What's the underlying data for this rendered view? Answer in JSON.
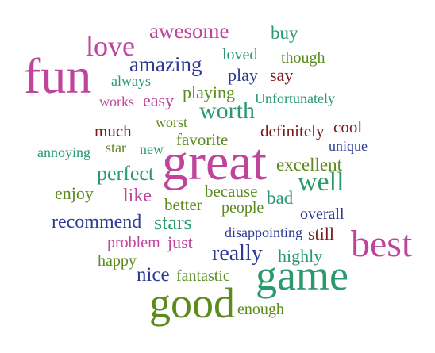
{
  "palette": {
    "magenta": "#c0449c",
    "navy": "#2d3a94",
    "olive": "#5b8a1e",
    "teal": "#2a9a6e",
    "maroon": "#7a1a1a"
  },
  "words": [
    {
      "id": "fun",
      "text": "fun",
      "color": "magenta"
    },
    {
      "id": "love",
      "text": "love",
      "color": "magenta"
    },
    {
      "id": "awesome",
      "text": "awesome",
      "color": "magenta"
    },
    {
      "id": "buy",
      "text": "buy",
      "color": "teal"
    },
    {
      "id": "amazing",
      "text": "amazing",
      "color": "navy"
    },
    {
      "id": "loved",
      "text": "loved",
      "color": "teal"
    },
    {
      "id": "though",
      "text": "though",
      "color": "olive"
    },
    {
      "id": "always",
      "text": "always",
      "color": "teal"
    },
    {
      "id": "play",
      "text": "play",
      "color": "navy"
    },
    {
      "id": "say",
      "text": "say",
      "color": "maroon"
    },
    {
      "id": "works",
      "text": "works",
      "color": "magenta"
    },
    {
      "id": "easy",
      "text": "easy",
      "color": "magenta"
    },
    {
      "id": "playing",
      "text": "playing",
      "color": "olive"
    },
    {
      "id": "worth",
      "text": "worth",
      "color": "teal"
    },
    {
      "id": "unfortunately",
      "text": "Unfortunately",
      "color": "teal"
    },
    {
      "id": "worst",
      "text": "worst",
      "color": "olive"
    },
    {
      "id": "much",
      "text": "much",
      "color": "maroon"
    },
    {
      "id": "definitely",
      "text": "definitely",
      "color": "maroon"
    },
    {
      "id": "cool",
      "text": "cool",
      "color": "maroon"
    },
    {
      "id": "favorite",
      "text": "favorite",
      "color": "olive"
    },
    {
      "id": "annoying",
      "text": "annoying",
      "color": "teal"
    },
    {
      "id": "star",
      "text": "star",
      "color": "olive"
    },
    {
      "id": "new",
      "text": "new",
      "color": "teal"
    },
    {
      "id": "unique",
      "text": "unique",
      "color": "navy"
    },
    {
      "id": "great",
      "text": "great",
      "color": "magenta"
    },
    {
      "id": "excellent",
      "text": "excellent",
      "color": "olive"
    },
    {
      "id": "perfect",
      "text": "perfect",
      "color": "teal"
    },
    {
      "id": "well",
      "text": "well",
      "color": "teal"
    },
    {
      "id": "enjoy",
      "text": "enjoy",
      "color": "olive"
    },
    {
      "id": "like",
      "text": "like",
      "color": "magenta"
    },
    {
      "id": "because",
      "text": "because",
      "color": "olive"
    },
    {
      "id": "bad",
      "text": "bad",
      "color": "teal"
    },
    {
      "id": "better",
      "text": "better",
      "color": "olive"
    },
    {
      "id": "people",
      "text": "people",
      "color": "olive"
    },
    {
      "id": "overall",
      "text": "overall",
      "color": "navy"
    },
    {
      "id": "recommend",
      "text": "recommend",
      "color": "navy"
    },
    {
      "id": "stars",
      "text": "stars",
      "color": "teal"
    },
    {
      "id": "best",
      "text": "best",
      "color": "magenta"
    },
    {
      "id": "problem",
      "text": "problem",
      "color": "magenta"
    },
    {
      "id": "just",
      "text": "just",
      "color": "magenta"
    },
    {
      "id": "disappointing",
      "text": "disappointing",
      "color": "navy"
    },
    {
      "id": "still",
      "text": "still",
      "color": "maroon"
    },
    {
      "id": "happy",
      "text": "happy",
      "color": "olive"
    },
    {
      "id": "really",
      "text": "really",
      "color": "navy"
    },
    {
      "id": "highly",
      "text": "highly",
      "color": "teal"
    },
    {
      "id": "nice",
      "text": "nice",
      "color": "navy"
    },
    {
      "id": "fantastic",
      "text": "fantastic",
      "color": "olive"
    },
    {
      "id": "game",
      "text": "game",
      "color": "teal"
    },
    {
      "id": "good",
      "text": "good",
      "color": "olive"
    },
    {
      "id": "enough",
      "text": "enough",
      "color": "olive"
    }
  ]
}
